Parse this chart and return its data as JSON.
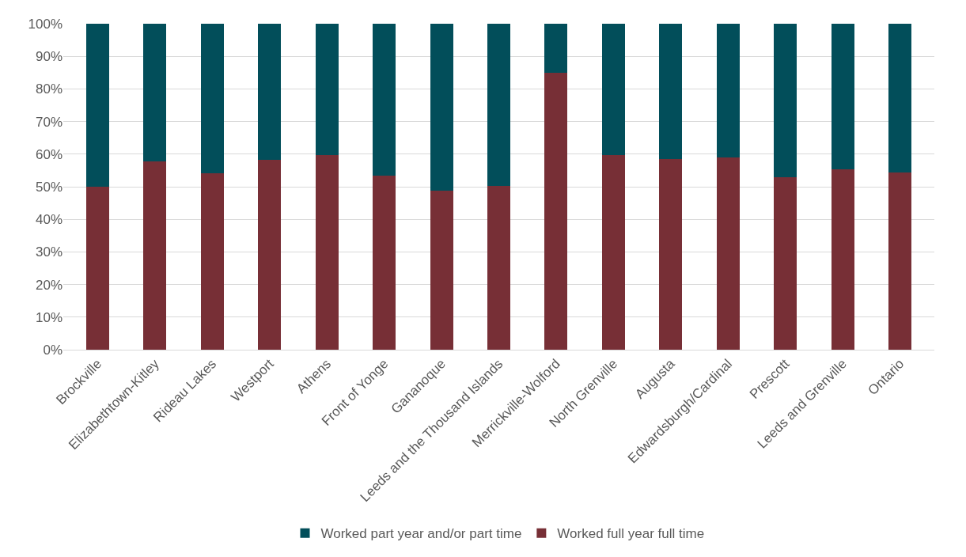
{
  "chart_data": {
    "type": "bar",
    "stacked": true,
    "categories": [
      "Brockville",
      "Elizabethtown-Kitley",
      "Rideau Lakes",
      "Westport",
      "Athens",
      "Front of Yonge",
      "Gananoque",
      "Leeds and the Thousand Islands",
      "Merrickville-Wolford",
      "North Grenville",
      "Augusta",
      "Edwardsburgh/Cardinal",
      "Prescott",
      "Leeds and Grenville",
      "Ontario"
    ],
    "series": [
      {
        "name": "Worked full year full time",
        "color": "#772f36",
        "values": [
          50.1,
          57.8,
          54.1,
          58.2,
          59.8,
          53.5,
          48.9,
          50.2,
          84.9,
          59.7,
          58.4,
          59.0,
          52.9,
          55.4,
          54.3
        ]
      },
      {
        "name": "Worked part year and/or part time",
        "color": "#024e5a",
        "values": [
          49.9,
          42.2,
          45.9,
          41.8,
          40.2,
          46.5,
          51.1,
          49.8,
          15.1,
          40.3,
          41.6,
          41.0,
          47.1,
          44.6,
          45.7
        ]
      }
    ],
    "ylim": [
      0,
      100
    ],
    "yticks": [
      {
        "value": 0,
        "label": "0%"
      },
      {
        "value": 10,
        "label": "10%"
      },
      {
        "value": 20,
        "label": "20%"
      },
      {
        "value": 30,
        "label": "30%"
      },
      {
        "value": 40,
        "label": "40%"
      },
      {
        "value": 50,
        "label": "50%"
      },
      {
        "value": 60,
        "label": "60%"
      },
      {
        "value": 70,
        "label": "70%"
      },
      {
        "value": 80,
        "label": "80%"
      },
      {
        "value": 90,
        "label": "90%"
      },
      {
        "value": 100,
        "label": "100%"
      }
    ],
    "grid": "y",
    "legend": "bottom"
  }
}
